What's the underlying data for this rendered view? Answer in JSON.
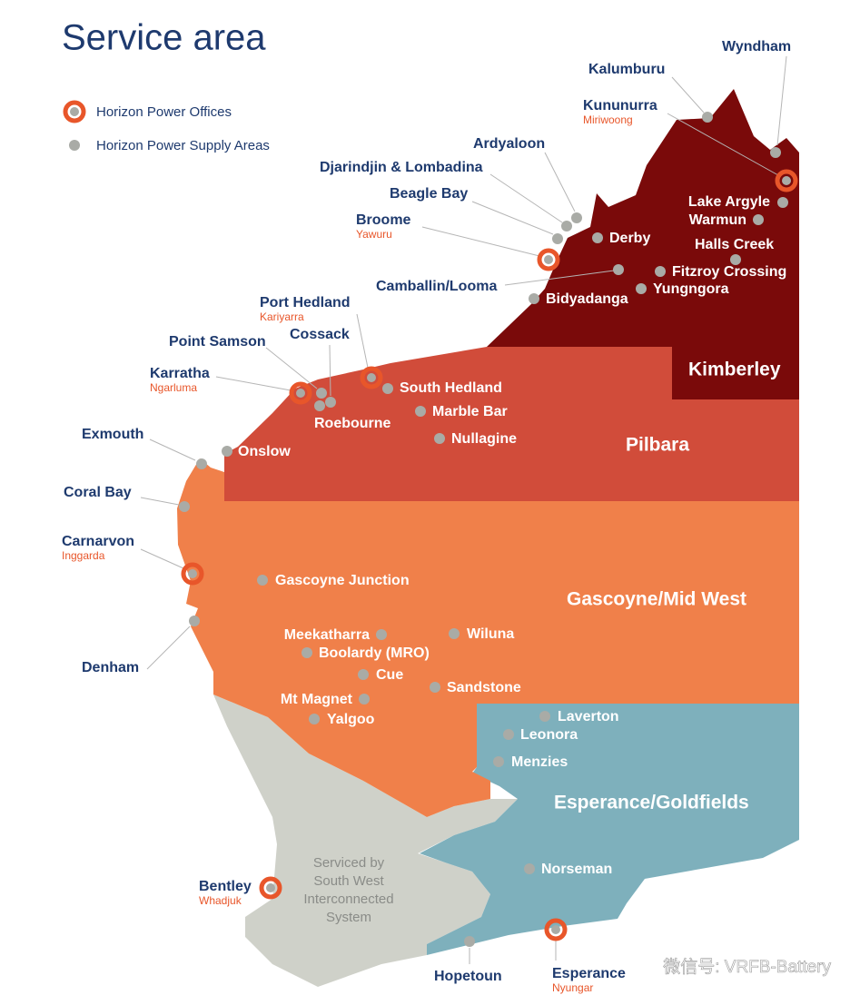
{
  "header": {
    "title": "Service area"
  },
  "legend": {
    "offices": "Horizon Power Offices",
    "supply_areas": "Horizon Power Supply Areas"
  },
  "regions": [
    {
      "name": "Kimberley"
    },
    {
      "name": "Pilbara"
    },
    {
      "name": "Gascoyne/Mid West"
    },
    {
      "name": "Esperance/Goldfields"
    }
  ],
  "south_west_note": [
    "Serviced by",
    "South West",
    "Interconnected",
    "System"
  ],
  "offices": [
    {
      "name": "Kununurra",
      "local_name": "Miriwoong"
    },
    {
      "name": "Broome",
      "local_name": "Yawuru"
    },
    {
      "name": "Port Hedland",
      "local_name": "Kariyarra"
    },
    {
      "name": "Karratha",
      "local_name": "Ngarluma"
    },
    {
      "name": "Carnarvon",
      "local_name": "Inggarda"
    },
    {
      "name": "Bentley",
      "local_name": "Whadjuk"
    },
    {
      "name": "Esperance",
      "local_name": "Nyungar"
    }
  ],
  "supply_areas": [
    {
      "name": "Wyndham"
    },
    {
      "name": "Kalumburu"
    },
    {
      "name": "Ardyaloon"
    },
    {
      "name": "Djarindjin & Lombadina"
    },
    {
      "name": "Beagle Bay"
    },
    {
      "name": "Camballin/Looma"
    },
    {
      "name": "Derby"
    },
    {
      "name": "Lake Argyle"
    },
    {
      "name": "Warmun"
    },
    {
      "name": "Halls Creek"
    },
    {
      "name": "Fitzroy Crossing"
    },
    {
      "name": "Yungngora"
    },
    {
      "name": "Bidyadanga"
    },
    {
      "name": "Point Samson"
    },
    {
      "name": "Cossack"
    },
    {
      "name": "Roebourne"
    },
    {
      "name": "South Hedland"
    },
    {
      "name": "Marble Bar"
    },
    {
      "name": "Nullagine"
    },
    {
      "name": "Exmouth"
    },
    {
      "name": "Onslow"
    },
    {
      "name": "Coral Bay"
    },
    {
      "name": "Gascoyne Junction"
    },
    {
      "name": "Denham"
    },
    {
      "name": "Meekatharra"
    },
    {
      "name": "Wiluna"
    },
    {
      "name": "Boolardy (MRO)"
    },
    {
      "name": "Cue"
    },
    {
      "name": "Sandstone"
    },
    {
      "name": "Mt Magnet"
    },
    {
      "name": "Yalgoo"
    },
    {
      "name": "Laverton"
    },
    {
      "name": "Leonora"
    },
    {
      "name": "Menzies"
    },
    {
      "name": "Norseman"
    },
    {
      "name": "Hopetoun"
    }
  ],
  "watermark": "微信号: VRFB-Battery"
}
